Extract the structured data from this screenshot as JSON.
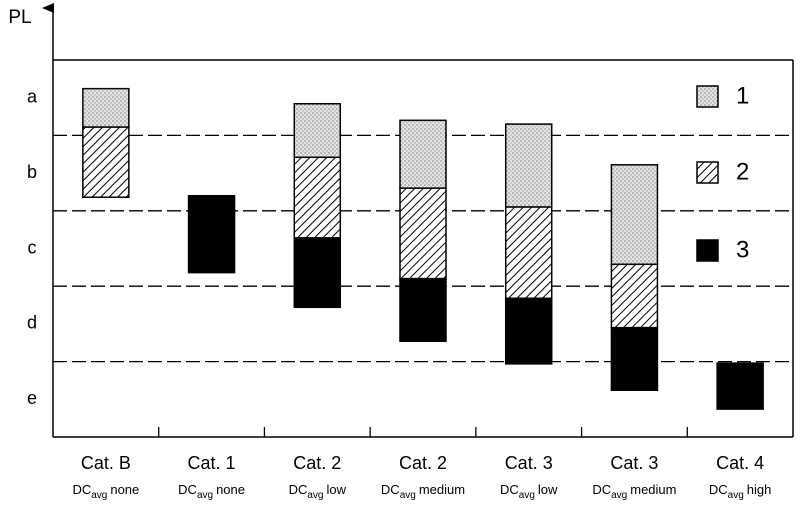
{
  "chart_data": {
    "type": "floating-stacked-bar",
    "y_label": "PL",
    "categories": [
      "Cat. B",
      "Cat. 1",
      "Cat. 2",
      "Cat. 2",
      "Cat. 3",
      "Cat. 3",
      "Cat. 4"
    ],
    "note_prefix": "DC",
    "note_subscript": "avg",
    "category_notes": [
      "none",
      "none",
      "low",
      "medium",
      "low",
      "medium",
      "high"
    ],
    "ylim": [
      0,
      5
    ],
    "yticks": [
      {
        "value": 4.5,
        "label": "a"
      },
      {
        "value": 3.5,
        "label": "b"
      },
      {
        "value": 2.5,
        "label": "c"
      },
      {
        "value": 1.5,
        "label": "d"
      },
      {
        "value": 0.5,
        "label": "e"
      }
    ],
    "dividers": [
      1,
      2,
      3,
      4
    ],
    "series": [
      {
        "name": "1",
        "pattern": "dots",
        "values": [
          [
            4.11,
            4.62
          ],
          null,
          [
            3.71,
            4.42
          ],
          [
            3.3,
            4.2
          ],
          [
            3.05,
            4.15
          ],
          [
            2.29,
            3.61
          ],
          null
        ]
      },
      {
        "name": "2",
        "pattern": "hatch",
        "values": [
          [
            3.18,
            4.11
          ],
          null,
          [
            2.64,
            3.71
          ],
          [
            2.1,
            3.3
          ],
          [
            1.84,
            3.05
          ],
          [
            1.45,
            2.29
          ],
          null
        ]
      },
      {
        "name": "3",
        "pattern": "solid",
        "values": [
          null,
          [
            2.18,
            3.2
          ],
          [
            1.72,
            2.64
          ],
          [
            1.27,
            2.1
          ],
          [
            0.97,
            1.84
          ],
          [
            0.62,
            1.45
          ],
          [
            0.37,
            0.98
          ]
        ]
      }
    ]
  }
}
